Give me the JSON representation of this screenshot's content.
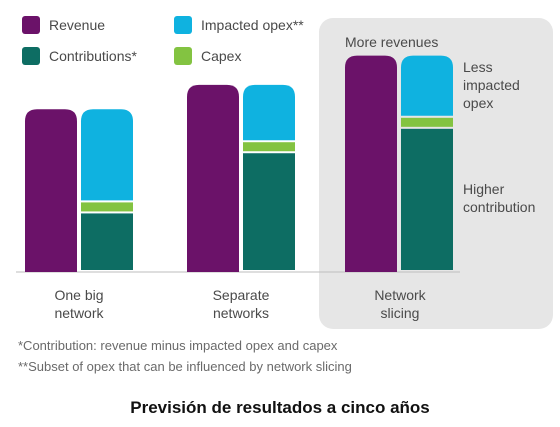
{
  "legend": [
    {
      "name": "Revenue",
      "color": "#6b1269"
    },
    {
      "name": "Impacted opex**",
      "color": "#0fb2e0"
    },
    {
      "name": "Contributions*",
      "color": "#0d6d63"
    },
    {
      "name": "Capex",
      "color": "#83c341"
    }
  ],
  "chart_data": {
    "type": "bar",
    "stacked": true,
    "categories": [
      "One big\nnetwork",
      "Separate\nnetworks",
      "Network\nslicing"
    ],
    "series": [
      {
        "name": "Revenue",
        "values": [
          100,
          115,
          133
        ]
      },
      {
        "name": "Contributions*",
        "values": [
          36,
          73,
          88
        ]
      },
      {
        "name": "Capex",
        "values": [
          8,
          8,
          8
        ]
      },
      {
        "name": "Impacted opex**",
        "values": [
          56,
          34,
          37
        ]
      }
    ],
    "highlight_category": "Network\nslicing",
    "annotations": [
      {
        "text": "More revenues"
      },
      {
        "text": "Less\nimpacted\nopex"
      },
      {
        "text": "Higher\ncontribution"
      }
    ]
  },
  "footnotes": [
    "*Contribution: revenue minus impacted opex and capex",
    "**Subset of opex that can be influenced by network slicing"
  ],
  "caption": "Previsión de resultados a cinco años"
}
